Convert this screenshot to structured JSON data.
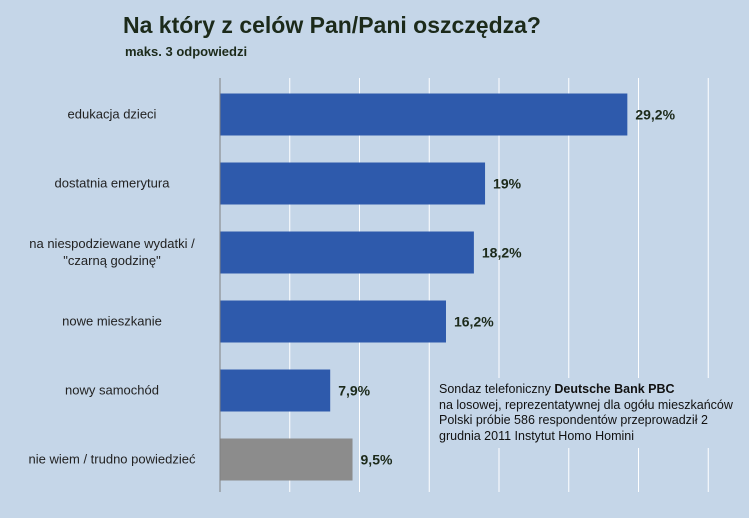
{
  "header": {
    "title": "Na który z celów Pan/Pani oszczędza?",
    "subtitle": "maks. 3 odpowiedzi"
  },
  "note": {
    "prefix": "Sondaz telefoniczny ",
    "brand": "Deutsche Bank PBC",
    "rest": "na losowej, reprezentatywnej dla ogółu mieszkańców Polski próbie 586 respondentów przeprowadził 2 grudnia 2011 Instytut Homo Homini"
  },
  "chart_data": {
    "type": "bar",
    "orientation": "horizontal",
    "title": "Na który z celów Pan/Pani oszczędza?",
    "subtitle": "maks. 3 odpowiedzi",
    "categories": [
      [
        "edukacja dzieci"
      ],
      [
        "dostatnia emerytura"
      ],
      [
        "na niespodziewane wydatki /",
        "\"czarną godzinę\""
      ],
      [
        "nowe mieszkanie"
      ],
      [
        "nowy samochód"
      ],
      [
        "nie wiem / trudno powiedzieć"
      ]
    ],
    "values": [
      29.2,
      19,
      18.2,
      16.2,
      7.9,
      9.5
    ],
    "value_labels": [
      "29,2%",
      "19%",
      "18,2%",
      "16,2%",
      "7,9%",
      "9,5%"
    ],
    "colors": [
      "#2e5aac",
      "#2e5aac",
      "#2e5aac",
      "#2e5aac",
      "#2e5aac",
      "#8c8c8c"
    ],
    "xlim": [
      0,
      35
    ],
    "grid": true,
    "gridline_step": 5,
    "colors_theme": {
      "background": "#c5d6e8",
      "grid": "#ffffff",
      "axis": "#808080"
    }
  }
}
